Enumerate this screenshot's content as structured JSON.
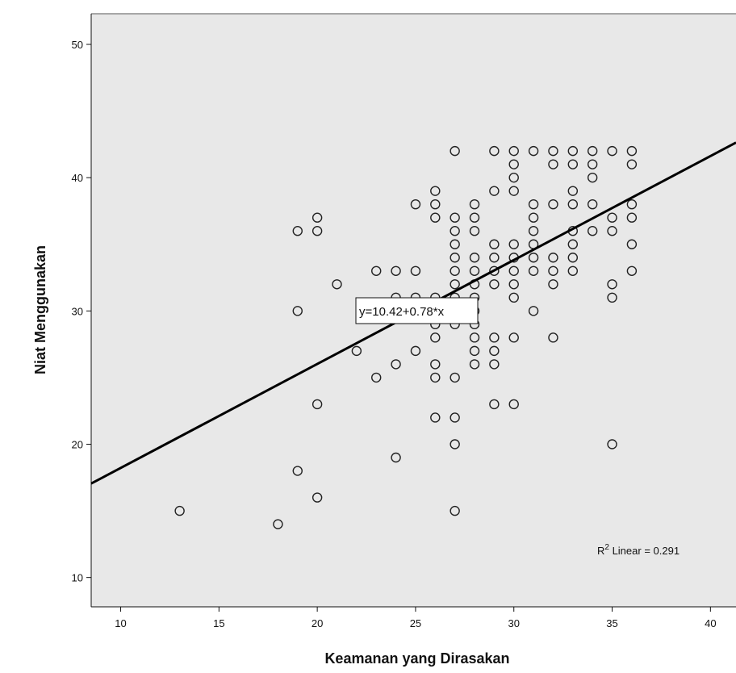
{
  "chart_data": {
    "type": "scatter",
    "title": "",
    "xlabel": "Keamanan yang Dirasakan",
    "ylabel": "Niat Menggunakan",
    "xlim": [
      8.5,
      41.3
    ],
    "ylim": [
      7.8,
      52.3
    ],
    "xticks": [
      10,
      15,
      20,
      25,
      30,
      35,
      40
    ],
    "yticks": [
      10,
      20,
      30,
      40,
      50
    ],
    "grid": false,
    "background": "#e8e8e8",
    "marker_color": "#222222",
    "fit_line": {
      "type": "linear",
      "intercept": 10.42,
      "slope": 0.78,
      "equation_label": "y=10.42+0.78*x",
      "r2_prefix": "R",
      "r2_sup": "2",
      "r2_suffix": " Linear = 0.291"
    },
    "points": [
      [
        13,
        15
      ],
      [
        18,
        14
      ],
      [
        19,
        36
      ],
      [
        19,
        30
      ],
      [
        19,
        18
      ],
      [
        20,
        37
      ],
      [
        20,
        36
      ],
      [
        20,
        23
      ],
      [
        20,
        16
      ],
      [
        21,
        32
      ],
      [
        22,
        27
      ],
      [
        23,
        33
      ],
      [
        23,
        25
      ],
      [
        24,
        33
      ],
      [
        24,
        31
      ],
      [
        24,
        26
      ],
      [
        24,
        19
      ],
      [
        25,
        38
      ],
      [
        25,
        33
      ],
      [
        25,
        31
      ],
      [
        25,
        27
      ],
      [
        26,
        39
      ],
      [
        26,
        38
      ],
      [
        26,
        37
      ],
      [
        26,
        31
      ],
      [
        26,
        30
      ],
      [
        26,
        29
      ],
      [
        26,
        28
      ],
      [
        26,
        26
      ],
      [
        26,
        25
      ],
      [
        26,
        22
      ],
      [
        27,
        42
      ],
      [
        27,
        37
      ],
      [
        27,
        36
      ],
      [
        27,
        35
      ],
      [
        27,
        34
      ],
      [
        27,
        33
      ],
      [
        27,
        32
      ],
      [
        27,
        31
      ],
      [
        27,
        30
      ],
      [
        27,
        29
      ],
      [
        27,
        25
      ],
      [
        27,
        22
      ],
      [
        27,
        20
      ],
      [
        27,
        15
      ],
      [
        28,
        38
      ],
      [
        28,
        37
      ],
      [
        28,
        36
      ],
      [
        28,
        34
      ],
      [
        28,
        33
      ],
      [
        28,
        32
      ],
      [
        28,
        31
      ],
      [
        28,
        30
      ],
      [
        28,
        29
      ],
      [
        28,
        28
      ],
      [
        28,
        27
      ],
      [
        28,
        26
      ],
      [
        29,
        42
      ],
      [
        29,
        39
      ],
      [
        29,
        35
      ],
      [
        29,
        34
      ],
      [
        29,
        33
      ],
      [
        29,
        32
      ],
      [
        29,
        28
      ],
      [
        29,
        27
      ],
      [
        29,
        26
      ],
      [
        29,
        23
      ],
      [
        30,
        42
      ],
      [
        30,
        41
      ],
      [
        30,
        40
      ],
      [
        30,
        39
      ],
      [
        30,
        35
      ],
      [
        30,
        34
      ],
      [
        30,
        33
      ],
      [
        30,
        32
      ],
      [
        30,
        31
      ],
      [
        30,
        28
      ],
      [
        30,
        23
      ],
      [
        31,
        42
      ],
      [
        31,
        38
      ],
      [
        31,
        37
      ],
      [
        31,
        36
      ],
      [
        31,
        35
      ],
      [
        31,
        34
      ],
      [
        31,
        33
      ],
      [
        31,
        30
      ],
      [
        32,
        42
      ],
      [
        32,
        41
      ],
      [
        32,
        38
      ],
      [
        32,
        34
      ],
      [
        32,
        33
      ],
      [
        32,
        32
      ],
      [
        32,
        28
      ],
      [
        33,
        42
      ],
      [
        33,
        41
      ],
      [
        33,
        39
      ],
      [
        33,
        38
      ],
      [
        33,
        36
      ],
      [
        33,
        35
      ],
      [
        33,
        34
      ],
      [
        33,
        33
      ],
      [
        34,
        42
      ],
      [
        34,
        41
      ],
      [
        34,
        40
      ],
      [
        34,
        38
      ],
      [
        34,
        36
      ],
      [
        35,
        42
      ],
      [
        35,
        37
      ],
      [
        35,
        36
      ],
      [
        35,
        32
      ],
      [
        35,
        31
      ],
      [
        35,
        20
      ],
      [
        36,
        42
      ],
      [
        36,
        41
      ],
      [
        36,
        38
      ],
      [
        36,
        37
      ],
      [
        36,
        35
      ],
      [
        36,
        33
      ]
    ]
  }
}
